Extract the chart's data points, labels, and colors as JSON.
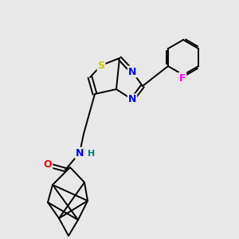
{
  "background_color": "#e8e8e8",
  "atom_colors": {
    "S": "#cccc00",
    "N": "#0000ff",
    "O": "#ff0000",
    "F": "#ff00ff",
    "H": "#008080",
    "C": "#000000"
  },
  "figsize": [
    3.0,
    3.0
  ],
  "dpi": 100
}
